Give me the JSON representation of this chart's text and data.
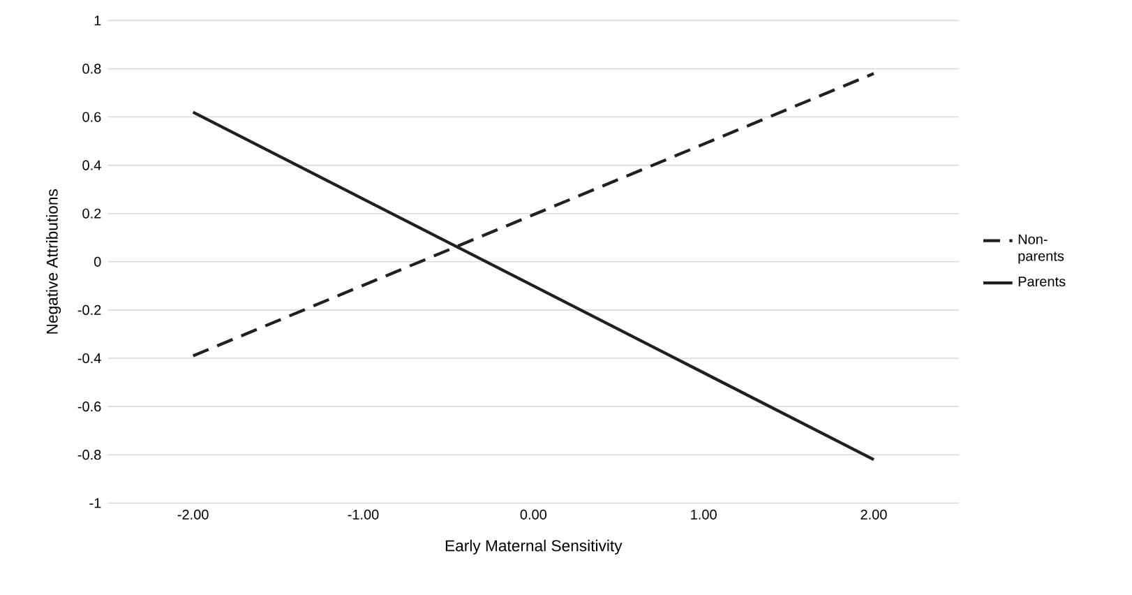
{
  "chart_data": {
    "type": "line",
    "xlabel": "Early Maternal Sensitivity",
    "ylabel": "Negative Attributions",
    "xlim": [
      -2.5,
      2.5
    ],
    "xticks": [
      {
        "value": -2,
        "label": "-2.00"
      },
      {
        "value": -1,
        "label": "-1.00"
      },
      {
        "value": 0,
        "label": "0.00"
      },
      {
        "value": 1,
        "label": "1.00"
      },
      {
        "value": 2,
        "label": "2.00"
      }
    ],
    "ylim": [
      -1,
      1
    ],
    "yticks": [
      -1,
      -0.8,
      -0.6,
      -0.4,
      -0.2,
      0,
      0.2,
      0.4,
      0.6,
      0.8,
      1
    ],
    "x": [
      -2,
      2
    ],
    "series": [
      {
        "name": "Non-parents",
        "color": "#231f20",
        "line_style": "dashed",
        "values": [
          -0.39,
          0.78
        ]
      },
      {
        "name": "Parents",
        "color": "#231f20",
        "line_style": "solid",
        "values": [
          0.62,
          -0.82
        ]
      }
    ],
    "grid": "y",
    "legend": "right",
    "marker": "none"
  }
}
